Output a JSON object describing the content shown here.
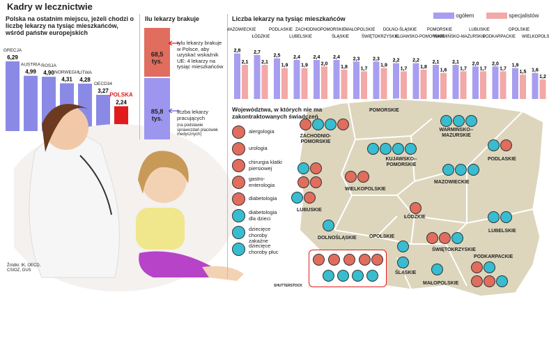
{
  "page_title": "Kadry w lecznictwie",
  "left_panel": {
    "heading": "Polska na ostatnim miejscu, jeżeli chodzi o liczbę lekarzy na tysiąc mieszkańców, wśród państw europejskich"
  },
  "middle_panel": {
    "heading": "Ilu lekarzy brakuje",
    "missing_value": "68,5",
    "missing_unit": "tys.",
    "missing_note": "tylu lekarzy brakuje w Polsce, aby uzyskać wskaźnik UE: 4 lekarzy na tysiąc mieszkańców",
    "working_value": "85,8",
    "working_unit": "tys.",
    "working_note": "liczba lekarzy pracujących",
    "working_subnote": "(na podstawie sprawozdań placówek medycznych)"
  },
  "right_panel": {
    "heading": "Liczba lekarzy na tysiąc mieszkańców",
    "legend_total": "ogółem",
    "legend_specialists": "specjalistów"
  },
  "map_panel": {
    "heading": "Województwa, w których nie ma zakontraktowanych świadczeń",
    "legend": [
      "alergologia",
      "urologia",
      "chirurgia klatki piersiowej",
      "gastro-enterologia",
      "diabetologia",
      "diabetologia dla dzieci",
      "dziecięce choroby zakaźne",
      "dziecięce choroby płuc"
    ],
    "regions": {
      "pomorskie": "POMORSKIE",
      "zachodniopomorskie": "ZACHODNIO-POMORSKIE",
      "warminsko": "WARMIŃSKO--MAZURSKIE",
      "podlaskie": "PODLASKIE",
      "kujawsko": "KUJAWSKO--POMORSKIE",
      "wielkopolskie": "WIELKOPOLSKIE",
      "mazowieckie": "MAZOWIECKIE",
      "lubuskie": "LUBUSKIE",
      "lodzkie": "ŁÓDZKIE",
      "lubelskie": "LUBELSKIE",
      "dolnoslaskie": "DOLNOŚLĄSKIE",
      "opolskie": "OPOLSKIE",
      "swietokrzyskie": "ŚWIĘTOKRZYSKIE",
      "slaskie": "ŚLĄSKIE",
      "malopolskie": "MAŁOPOLSKIE",
      "podkarpackie": "PODKARPACKIE"
    }
  },
  "source": "Źródło: IK, OECD, CSIOZ, GUS",
  "photo_credit": "SHUTTERSTOCK",
  "colors": {
    "europe_bar": "#8a8ae6",
    "poland_bar": "#e11b1b",
    "total": "#a79ef0",
    "specialists": "#f2a9a7",
    "missing": "#e06d5e",
    "working": "#9c96ee",
    "map_fill": "#ddd6bd",
    "icon_red": "#e06d5e",
    "icon_cyan": "#38bcd0"
  },
  "chart_data": [
    {
      "type": "bar",
      "title": "Polska na ostatnim miejscu, jeżeli chodzi o liczbę lekarzy na tysiąc mieszkańców, wśród państw europejskich",
      "categories": [
        "GRECJA",
        "AUSTRIA",
        "ROSJA",
        "NORWEGIA",
        "LITWA",
        "OECD34",
        "POLSKA"
      ],
      "values": [
        6.29,
        4.99,
        4.9,
        4.31,
        4.28,
        3.27,
        2.24
      ],
      "value_labels": [
        "6,29",
        "4,99",
        "4,90",
        "4,31",
        "4,28",
        "3,27",
        "2,24"
      ],
      "ylim": [
        0,
        6.6
      ]
    },
    {
      "type": "bar",
      "title": "Ilu lekarzy brakuje",
      "categories": [
        "brakuje",
        "pracujących"
      ],
      "values": [
        68.5,
        85.8
      ],
      "unit": "tys."
    },
    {
      "type": "bar",
      "title": "Liczba lekarzy na tysiąc mieszkańców",
      "categories": [
        "MAZOWIECKIE",
        "ŁÓDZKIE",
        "PODLASKIE",
        "LUBELSKIE",
        "ZACHODNIOPOMORSKIE",
        "ŚLĄSKIE",
        "MAŁOPOLSKIE",
        "ŚWIĘTOKRZYSKIE",
        "DOLNO-ŚLĄSKIE",
        "KUJAWSKO-POMORSKIE",
        "POMORSKIE",
        "WARMIŃSKO-MAZURSKIE",
        "LUBUSKIE",
        "PODKARPACKIE",
        "OPOLSKIE",
        "WIELKOPOLSKIE"
      ],
      "series": [
        {
          "name": "ogółem",
          "values": [
            2.8,
            2.7,
            2.5,
            2.4,
            2.4,
            2.4,
            2.3,
            2.3,
            2.2,
            2.2,
            2.1,
            2.1,
            2.0,
            2.0,
            1.9,
            1.6
          ],
          "labels": [
            "2,8",
            "2,7",
            "2,5",
            "2,4",
            "2,4",
            "2,4",
            "2,3",
            "2,3",
            "2,2",
            "2,2",
            "2,1",
            "2,1",
            "2,0",
            "2,0",
            "1,9",
            "1,6"
          ]
        },
        {
          "name": "specjalistów",
          "values": [
            2.1,
            2.1,
            1.9,
            1.9,
            2.0,
            1.8,
            1.7,
            1.9,
            1.7,
            1.8,
            1.6,
            1.7,
            1.7,
            1.7,
            1.5,
            1.2
          ],
          "labels": [
            "2,1",
            "2,1",
            "1,9",
            "1,9",
            "2,0",
            "1,8",
            "1,7",
            "1,9",
            "1,7",
            "1,8",
            "1,6",
            "1,7",
            "1,7",
            "1,7",
            "1,5",
            "1,2"
          ]
        }
      ],
      "ylim": [
        0,
        3.0
      ],
      "legend": "top-right"
    }
  ]
}
